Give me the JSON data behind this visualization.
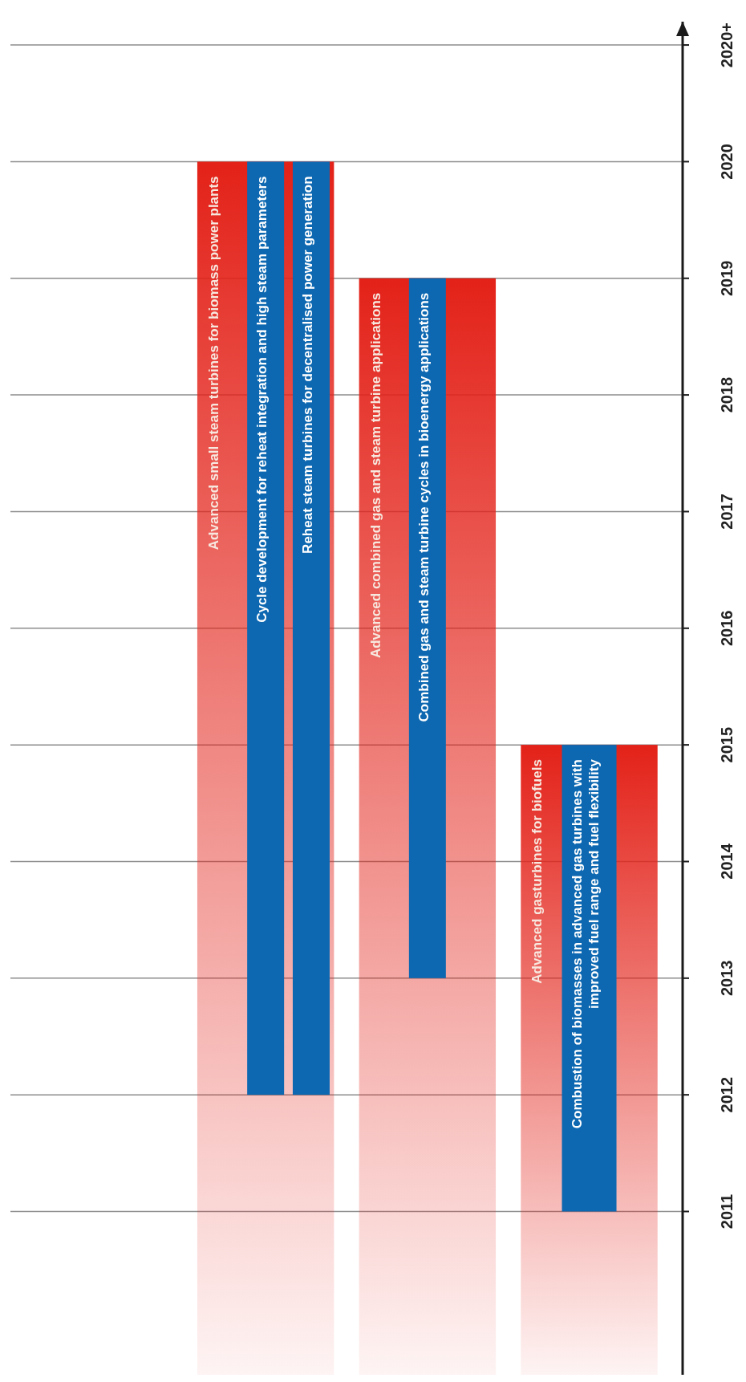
{
  "chart_data": {
    "type": "bar",
    "categories": [
      null,
      null,
      null,
      null
    ],
    "series": [
      {
        "color": "#e32219",
        "values": [
          null,
          10.4,
          9.4,
          5.4
        ],
        "base": [
          null,
          2009.6,
          2009.6,
          2009.6
        ],
        "value_labels": [
          null,
          "Advanced small steam turbines for biomass power plants",
          "Advanced combined gas and steam turbine applications",
          "Advanced gasturbines for biofuels"
        ]
      },
      {
        "color": "#0d68b1",
        "values": [
          null,
          8,
          6,
          4
        ],
        "base": [
          null,
          2012,
          2013,
          2011
        ],
        "value_labels": [
          null,
          "Cycle development for reheat integration and high steam parameters",
          "Combined gas and steam turbine cycles in bioenergy applications",
          "Combustion of biomasses in advanced gas turbines with improved fuel range and fuel flexibility"
        ]
      },
      {
        "color": "#0d68b1",
        "values": [
          null,
          8,
          null,
          null
        ],
        "base": [
          null,
          2012,
          null,
          null
        ],
        "value_labels": [
          null,
          "Reheat steam turbines for decentralised power generation",
          null,
          null
        ]
      }
    ],
    "ylim": [
      2009.6,
      2021.2
    ],
    "yticks": [
      2011,
      2012,
      2013,
      2014,
      2015,
      2016,
      2017,
      2018,
      2019,
      2020,
      {
        "value": 2021,
        "label": "2020+"
      }
    ],
    "grid": true
  }
}
